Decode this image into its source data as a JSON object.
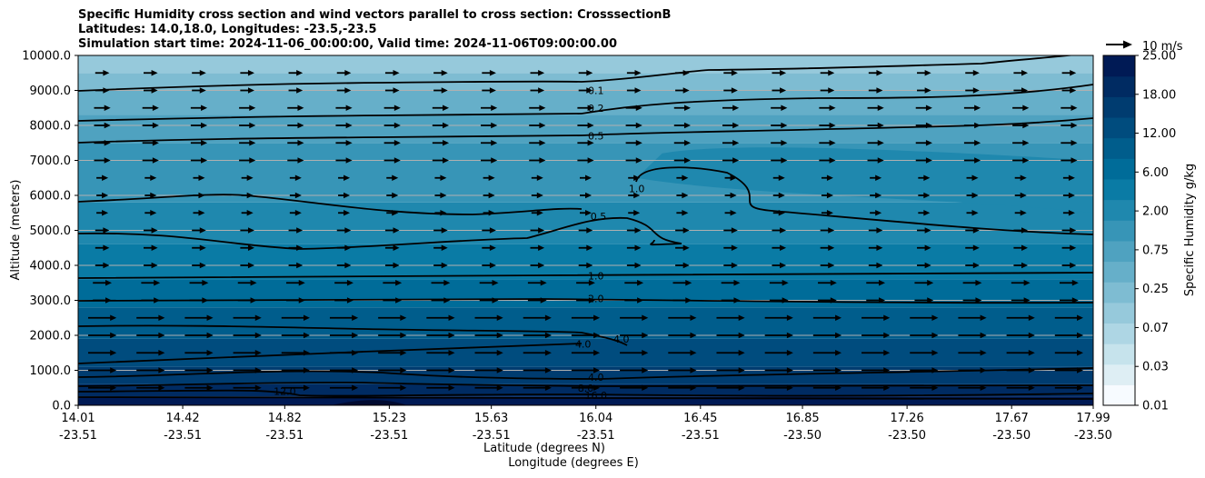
{
  "chart_data": {
    "type": "contourf",
    "title": [
      "Specific Humidity cross section and wind vectors parallel to cross section: CrosssectionB",
      "Latitudes: 14.0,18.0, Longitudes: -23.5,-23.5",
      "Simulation start time: 2024-11-06_00:00:00, Valid time: 2024-11-06T09:00:00.00"
    ],
    "ylabel": "Altitude (meters)",
    "xlabel_lat": "Latitude (degrees N)",
    "xlabel_lon": "Longitude (degrees E)",
    "ylim": [
      0,
      10000
    ],
    "yticks": [
      "0.0",
      "1000.0",
      "2000.0",
      "3000.0",
      "4000.0",
      "5000.0",
      "6000.0",
      "7000.0",
      "8000.0",
      "9000.0",
      "10000.0"
    ],
    "ytick_values": [
      0,
      1000,
      2000,
      3000,
      4000,
      5000,
      6000,
      7000,
      8000,
      9000,
      10000
    ],
    "xticks_lat": [
      "14.01",
      "14.42",
      "14.82",
      "15.23",
      "15.63",
      "16.04",
      "16.45",
      "16.85",
      "17.26",
      "17.67",
      "17.99"
    ],
    "xticks_lon": [
      "-23.51",
      "-23.51",
      "-23.51",
      "-23.51",
      "-23.51",
      "-23.51",
      "-23.51",
      "-23.50",
      "-23.50",
      "-23.50",
      "-23.50"
    ],
    "grid": "horizontal",
    "colorbar": {
      "label": "Specific Humidity g/kg",
      "ticks": [
        "0.01",
        "0.03",
        "0.07",
        "0.25",
        "0.75",
        "2.00",
        "6.00",
        "12.00",
        "18.00",
        "25.00"
      ],
      "colors": [
        "#f7fbff",
        "#deeef4",
        "#c6e3ec",
        "#aed6e4",
        "#96c9db",
        "#7ebcd2",
        "#66afc9",
        "#4fa2c0",
        "#3795b7",
        "#1f88ae",
        "#0a7ba5",
        "#006c99",
        "#005d8c",
        "#004c7e",
        "#003c70",
        "#002b62",
        "#001a55"
      ]
    },
    "quiver_key": "10 m/s",
    "contour_labels": [
      {
        "text": "0.1",
        "lat": 16.04,
        "alt": 9000
      },
      {
        "text": "0.2",
        "lat": 16.04,
        "alt": 8500
      },
      {
        "text": "0.5",
        "lat": 16.04,
        "alt": 7700
      },
      {
        "text": "1.0",
        "lat": 16.2,
        "alt": 6200
      },
      {
        "text": "0.5",
        "lat": 16.05,
        "alt": 5400
      },
      {
        "text": "1.0",
        "lat": 16.04,
        "alt": 3700
      },
      {
        "text": "2.0",
        "lat": 16.04,
        "alt": 3050
      },
      {
        "text": "4.0",
        "lat": 16.14,
        "alt": 1900
      },
      {
        "text": "4.0",
        "lat": 15.99,
        "alt": 1750
      },
      {
        "text": "4.0",
        "lat": 16.04,
        "alt": 800
      },
      {
        "text": "8.0",
        "lat": 16.0,
        "alt": 500
      },
      {
        "text": "12.0",
        "lat": 14.82,
        "alt": 400
      },
      {
        "text": "16.0",
        "lat": 16.04,
        "alt": 280
      }
    ]
  }
}
